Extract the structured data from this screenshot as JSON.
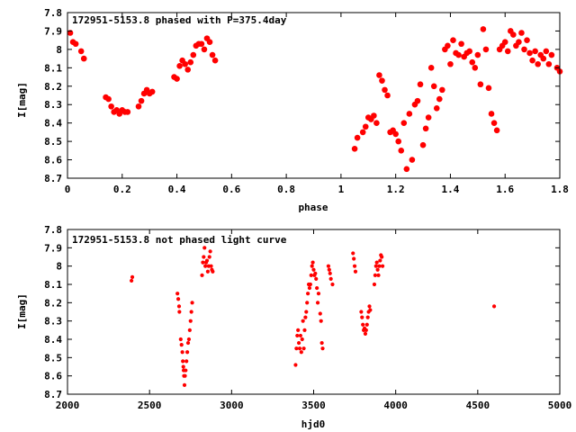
{
  "chart_data": [
    {
      "type": "scatter",
      "title": "172951-5153.8 phased with P=375.4day",
      "xlabel": "phase",
      "ylabel": "I[mag]",
      "xlim": [
        0,
        1.8
      ],
      "ylim": [
        7.8,
        8.7
      ],
      "y_inverted": true,
      "grid": false,
      "x_ticks": [
        {
          "value": 0,
          "label": "0"
        },
        {
          "value": 0.2,
          "label": "0.2"
        },
        {
          "value": 0.4,
          "label": "0.4"
        },
        {
          "value": 0.6,
          "label": "0.6"
        },
        {
          "value": 0.8,
          "label": "0.8"
        },
        {
          "value": 1.0,
          "label": "1"
        },
        {
          "value": 1.2,
          "label": "1.2"
        },
        {
          "value": 1.4,
          "label": "1.4"
        },
        {
          "value": 1.6,
          "label": "1.6"
        },
        {
          "value": 1.8,
          "label": "1.8"
        }
      ],
      "y_ticks": [
        {
          "value": 7.8,
          "label": "7.8"
        },
        {
          "value": 7.9,
          "label": "7.9"
        },
        {
          "value": 8.0,
          "label": "8"
        },
        {
          "value": 8.1,
          "label": "8.1"
        },
        {
          "value": 8.2,
          "label": "8.2"
        },
        {
          "value": 8.3,
          "label": "8.3"
        },
        {
          "value": 8.4,
          "label": "8.4"
        },
        {
          "value": 8.5,
          "label": "8.5"
        },
        {
          "value": 8.6,
          "label": "8.6"
        },
        {
          "value": 8.7,
          "label": "8.7"
        }
      ],
      "marker_color": "#ff0000",
      "marker": "large-dot",
      "points": [
        [
          0.01,
          7.91
        ],
        [
          0.02,
          7.96
        ],
        [
          0.03,
          7.97
        ],
        [
          0.05,
          8.01
        ],
        [
          0.06,
          8.05
        ],
        [
          0.14,
          8.26
        ],
        [
          0.15,
          8.27
        ],
        [
          0.16,
          8.31
        ],
        [
          0.17,
          8.34
        ],
        [
          0.18,
          8.33
        ],
        [
          0.19,
          8.35
        ],
        [
          0.2,
          8.33
        ],
        [
          0.21,
          8.34
        ],
        [
          0.22,
          8.34
        ],
        [
          0.26,
          8.31
        ],
        [
          0.27,
          8.28
        ],
        [
          0.28,
          8.24
        ],
        [
          0.29,
          8.22
        ],
        [
          0.3,
          8.24
        ],
        [
          0.31,
          8.23
        ],
        [
          0.39,
          8.15
        ],
        [
          0.4,
          8.16
        ],
        [
          0.41,
          8.09
        ],
        [
          0.42,
          8.06
        ],
        [
          0.43,
          8.08
        ],
        [
          0.44,
          8.11
        ],
        [
          0.45,
          8.07
        ],
        [
          0.46,
          8.03
        ],
        [
          0.47,
          7.98
        ],
        [
          0.48,
          7.97
        ],
        [
          0.49,
          7.97
        ],
        [
          0.5,
          8.0
        ],
        [
          0.51,
          7.94
        ],
        [
          0.52,
          7.96
        ],
        [
          0.53,
          8.03
        ],
        [
          0.54,
          8.06
        ],
        [
          1.05,
          8.54
        ],
        [
          1.06,
          8.48
        ],
        [
          1.08,
          8.45
        ],
        [
          1.09,
          8.42
        ],
        [
          1.1,
          8.37
        ],
        [
          1.11,
          8.38
        ],
        [
          1.12,
          8.36
        ],
        [
          1.13,
          8.4
        ],
        [
          1.14,
          8.14
        ],
        [
          1.15,
          8.17
        ],
        [
          1.16,
          8.22
        ],
        [
          1.17,
          8.25
        ],
        [
          1.18,
          8.45
        ],
        [
          1.19,
          8.44
        ],
        [
          1.2,
          8.46
        ],
        [
          1.21,
          8.5
        ],
        [
          1.22,
          8.55
        ],
        [
          1.23,
          8.4
        ],
        [
          1.24,
          8.65
        ],
        [
          1.25,
          8.35
        ],
        [
          1.26,
          8.6
        ],
        [
          1.27,
          8.3
        ],
        [
          1.28,
          8.28
        ],
        [
          1.29,
          8.19
        ],
        [
          1.3,
          8.52
        ],
        [
          1.31,
          8.43
        ],
        [
          1.32,
          8.37
        ],
        [
          1.33,
          8.1
        ],
        [
          1.34,
          8.2
        ],
        [
          1.35,
          8.32
        ],
        [
          1.36,
          8.27
        ],
        [
          1.37,
          8.22
        ],
        [
          1.38,
          8.0
        ],
        [
          1.39,
          7.98
        ],
        [
          1.4,
          8.08
        ],
        [
          1.41,
          7.95
        ],
        [
          1.42,
          8.02
        ],
        [
          1.43,
          8.03
        ],
        [
          1.44,
          7.97
        ],
        [
          1.45,
          8.04
        ],
        [
          1.46,
          8.02
        ],
        [
          1.47,
          8.01
        ],
        [
          1.48,
          8.07
        ],
        [
          1.49,
          8.1
        ],
        [
          1.5,
          8.03
        ],
        [
          1.51,
          8.19
        ],
        [
          1.52,
          7.89
        ],
        [
          1.53,
          8.0
        ],
        [
          1.54,
          8.21
        ],
        [
          1.55,
          8.35
        ],
        [
          1.56,
          8.4
        ],
        [
          1.57,
          8.44
        ],
        [
          1.58,
          8.0
        ],
        [
          1.59,
          7.98
        ],
        [
          1.6,
          7.96
        ],
        [
          1.61,
          8.01
        ],
        [
          1.62,
          7.9
        ],
        [
          1.63,
          7.92
        ],
        [
          1.64,
          7.98
        ],
        [
          1.65,
          7.96
        ],
        [
          1.66,
          7.91
        ],
        [
          1.67,
          8.0
        ],
        [
          1.68,
          7.95
        ],
        [
          1.69,
          8.02
        ],
        [
          1.7,
          8.06
        ],
        [
          1.71,
          8.01
        ],
        [
          1.72,
          8.08
        ],
        [
          1.73,
          8.03
        ],
        [
          1.74,
          8.05
        ],
        [
          1.75,
          8.01
        ],
        [
          1.76,
          8.08
        ],
        [
          1.77,
          8.03
        ],
        [
          1.79,
          8.1
        ],
        [
          1.8,
          8.12
        ]
      ]
    },
    {
      "type": "scatter",
      "title": "172951-5153.8 not phased light curve",
      "xlabel": "hjd0",
      "ylabel": "I[mag]",
      "xlim": [
        2000,
        5000
      ],
      "ylim": [
        7.8,
        8.7
      ],
      "y_inverted": true,
      "grid": false,
      "x_ticks": [
        {
          "value": 2000,
          "label": "2000"
        },
        {
          "value": 2500,
          "label": "2500"
        },
        {
          "value": 3000,
          "label": "3000"
        },
        {
          "value": 3500,
          "label": "3500"
        },
        {
          "value": 4000,
          "label": "4000"
        },
        {
          "value": 4500,
          "label": "4500"
        },
        {
          "value": 5000,
          "label": "5000"
        }
      ],
      "y_ticks": [
        {
          "value": 7.8,
          "label": "7.8"
        },
        {
          "value": 7.9,
          "label": "7.9"
        },
        {
          "value": 8.0,
          "label": "8"
        },
        {
          "value": 8.1,
          "label": "8.1"
        },
        {
          "value": 8.2,
          "label": "8.2"
        },
        {
          "value": 8.3,
          "label": "8.3"
        },
        {
          "value": 8.4,
          "label": "8.4"
        },
        {
          "value": 8.5,
          "label": "8.5"
        },
        {
          "value": 8.6,
          "label": "8.6"
        },
        {
          "value": 8.7,
          "label": "8.7"
        }
      ],
      "marker_color": "#ff0000",
      "marker": "small-dot",
      "points": [
        [
          2390,
          8.08
        ],
        [
          2395,
          8.06
        ],
        [
          2670,
          8.15
        ],
        [
          2675,
          8.18
        ],
        [
          2680,
          8.22
        ],
        [
          2682,
          8.25
        ],
        [
          2690,
          8.4
        ],
        [
          2695,
          8.43
        ],
        [
          2700,
          8.47
        ],
        [
          2703,
          8.52
        ],
        [
          2706,
          8.55
        ],
        [
          2708,
          8.57
        ],
        [
          2710,
          8.6
        ],
        [
          2713,
          8.65
        ],
        [
          2716,
          8.6
        ],
        [
          2720,
          8.57
        ],
        [
          2725,
          8.52
        ],
        [
          2730,
          8.47
        ],
        [
          2735,
          8.42
        ],
        [
          2740,
          8.4
        ],
        [
          2745,
          8.35
        ],
        [
          2750,
          8.3
        ],
        [
          2755,
          8.25
        ],
        [
          2760,
          8.2
        ],
        [
          2820,
          8.05
        ],
        [
          2825,
          7.98
        ],
        [
          2830,
          7.95
        ],
        [
          2835,
          7.9
        ],
        [
          2840,
          8.0
        ],
        [
          2845,
          7.98
        ],
        [
          2850,
          7.97
        ],
        [
          2855,
          8.03
        ],
        [
          2860,
          8.0
        ],
        [
          2865,
          7.95
        ],
        [
          2870,
          7.92
        ],
        [
          2875,
          8.0
        ],
        [
          2880,
          8.02
        ],
        [
          2885,
          8.03
        ],
        [
          3390,
          8.54
        ],
        [
          3395,
          8.45
        ],
        [
          3400,
          8.38
        ],
        [
          3405,
          8.35
        ],
        [
          3410,
          8.42
        ],
        [
          3415,
          8.45
        ],
        [
          3420,
          8.38
        ],
        [
          3425,
          8.47
        ],
        [
          3430,
          8.4
        ],
        [
          3435,
          8.3
        ],
        [
          3440,
          8.45
        ],
        [
          3445,
          8.35
        ],
        [
          3450,
          8.28
        ],
        [
          3455,
          8.25
        ],
        [
          3460,
          8.2
        ],
        [
          3465,
          8.15
        ],
        [
          3470,
          8.1
        ],
        [
          3475,
          8.12
        ],
        [
          3480,
          8.1
        ],
        [
          3485,
          8.05
        ],
        [
          3490,
          8.0
        ],
        [
          3495,
          7.98
        ],
        [
          3500,
          8.02
        ],
        [
          3505,
          8.05
        ],
        [
          3510,
          8.04
        ],
        [
          3515,
          8.07
        ],
        [
          3520,
          8.12
        ],
        [
          3525,
          8.2
        ],
        [
          3530,
          8.15
        ],
        [
          3540,
          8.26
        ],
        [
          3545,
          8.3
        ],
        [
          3550,
          8.42
        ],
        [
          3555,
          8.45
        ],
        [
          3590,
          8.0
        ],
        [
          3595,
          8.02
        ],
        [
          3600,
          8.04
        ],
        [
          3605,
          8.07
        ],
        [
          3615,
          8.1
        ],
        [
          3740,
          7.93
        ],
        [
          3745,
          7.96
        ],
        [
          3750,
          8.0
        ],
        [
          3755,
          8.03
        ],
        [
          3790,
          8.25
        ],
        [
          3795,
          8.28
        ],
        [
          3800,
          8.32
        ],
        [
          3805,
          8.35
        ],
        [
          3810,
          8.34
        ],
        [
          3815,
          8.37
        ],
        [
          3820,
          8.35
        ],
        [
          3825,
          8.32
        ],
        [
          3830,
          8.28
        ],
        [
          3835,
          8.25
        ],
        [
          3840,
          8.22
        ],
        [
          3845,
          8.24
        ],
        [
          3870,
          8.1
        ],
        [
          3875,
          8.05
        ],
        [
          3880,
          8.0
        ],
        [
          3885,
          7.98
        ],
        [
          3890,
          8.02
        ],
        [
          3895,
          8.05
        ],
        [
          3900,
          8.0
        ],
        [
          3905,
          7.97
        ],
        [
          3910,
          7.94
        ],
        [
          3915,
          7.95
        ],
        [
          3920,
          8.0
        ],
        [
          4600,
          8.22
        ]
      ]
    }
  ]
}
